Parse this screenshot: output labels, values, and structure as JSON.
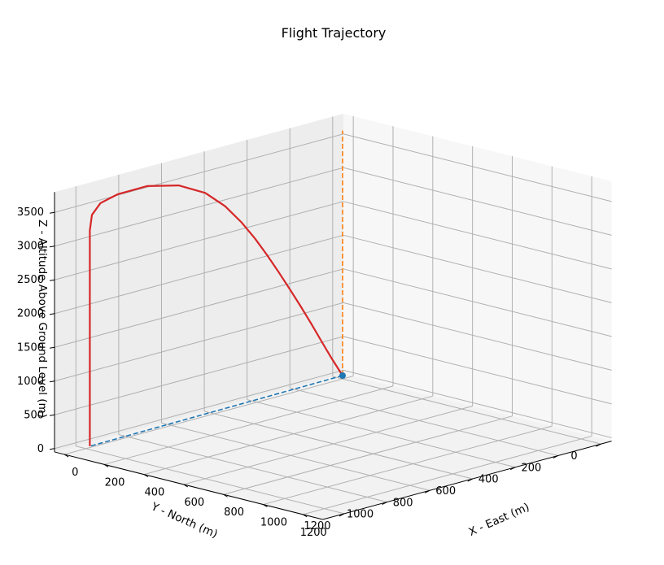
{
  "chart_data": {
    "type": "line",
    "projection": "3d",
    "title": "Flight Trajectory",
    "xlabel": "X - East (m)",
    "ylabel": "Y - North (m)",
    "zlabel": "Z - Altitude Above Ground Level (m)",
    "xlim": [
      0,
      1300
    ],
    "ylim": [
      0,
      1300
    ],
    "zlim": [
      0,
      3800
    ],
    "x_ticks": [
      0,
      200,
      400,
      600,
      800,
      1000,
      1200
    ],
    "y_ticks": [
      0,
      200,
      400,
      600,
      800,
      1000,
      1200
    ],
    "z_ticks": [
      0,
      500,
      1000,
      1500,
      2000,
      2500,
      3000,
      3500
    ],
    "grid": true,
    "colors": {
      "trajectory": "#d62728",
      "ground_track": "#1f77b4",
      "launch_marker": "#1f77b4",
      "altitude_projection": "#ff7f0e",
      "pane": "#f2f2f2",
      "grid": "#b0b0b0"
    },
    "series": [
      {
        "style": "solid",
        "role": "trajectory",
        "points": [
          [
            0,
            0,
            0
          ],
          [
            1,
            52,
            300
          ],
          [
            2,
            101,
            600
          ],
          [
            4,
            150,
            900
          ],
          [
            5,
            200,
            1200
          ],
          [
            6,
            252,
            1500
          ],
          [
            7,
            305,
            1800
          ],
          [
            8,
            360,
            2100
          ],
          [
            10,
            419,
            2400
          ],
          [
            11,
            484,
            2700
          ],
          [
            12,
            560,
            3000
          ],
          [
            14,
            655,
            3280
          ],
          [
            15,
            780,
            3500
          ],
          [
            17,
            930,
            3620
          ],
          [
            19,
            1070,
            3620
          ],
          [
            20,
            1150,
            3560
          ],
          [
            20,
            1190,
            3420
          ],
          [
            20,
            1200,
            3200
          ],
          [
            20,
            1200,
            2000
          ],
          [
            20,
            1200,
            1000
          ],
          [
            20,
            1200,
            0
          ]
        ]
      },
      {
        "style": "dashed",
        "role": "ground_track",
        "points": [
          [
            0,
            0,
            0
          ],
          [
            20,
            1200,
            0
          ]
        ]
      },
      {
        "style": "dashed",
        "role": "altitude_projection",
        "points": [
          [
            0,
            0,
            0
          ],
          [
            0,
            0,
            3630
          ]
        ]
      }
    ],
    "markers": [
      {
        "role": "launch_point",
        "point": [
          0,
          0,
          0
        ]
      }
    ]
  }
}
